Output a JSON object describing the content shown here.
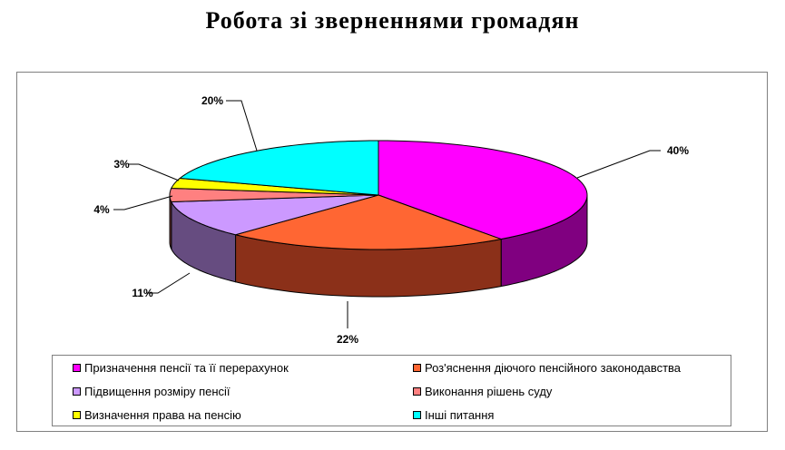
{
  "chart_data": {
    "type": "pie",
    "title": "Робота зі зверненнями громадян",
    "categories": [
      "Призначення пенсії та її перерахунок",
      "Роз'яснення діючого пенсійного законодавства",
      "Підвищення розміру пенсії",
      "Виконання рішень суду",
      "Визначення права на пенсію",
      "Інші питання"
    ],
    "values": [
      40,
      22,
      11,
      4,
      3,
      20
    ],
    "labels": [
      "40%",
      "22%",
      "11%",
      "4%",
      "3%",
      "20%"
    ],
    "colors": [
      "#FF00FF",
      "#FF6633",
      "#CC99FF",
      "#FF8080",
      "#FFFF00",
      "#00FFFF"
    ],
    "side_colors": [
      "#800080",
      "#8B3019",
      "#664C80",
      "#804040",
      "#808000",
      "#008080"
    ],
    "style": "3d-pie",
    "legend_position": "bottom"
  }
}
